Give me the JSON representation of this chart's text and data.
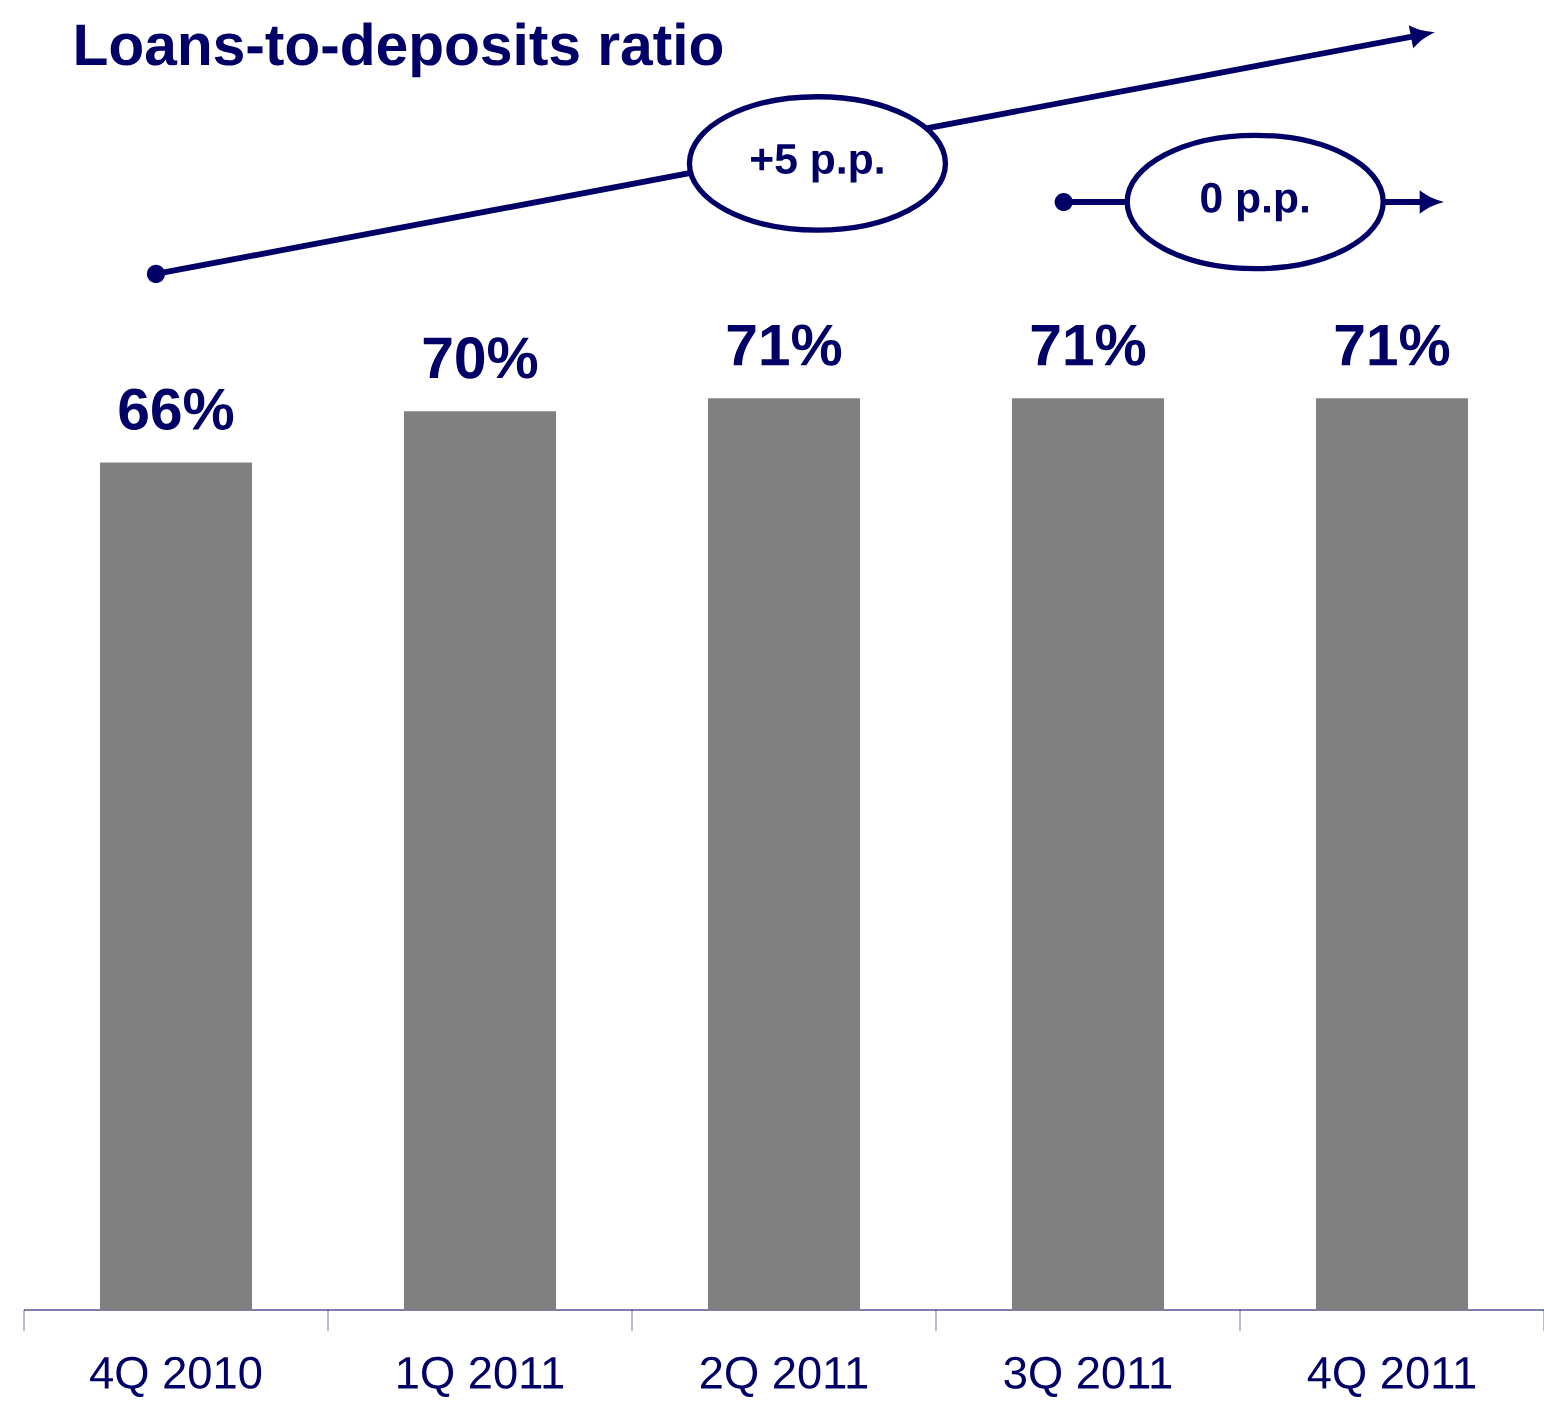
{
  "chart_data": {
    "type": "bar",
    "title": "Loans-to-deposits ratio",
    "categories": [
      "4Q 2010",
      "1Q 2011",
      "2Q 2011",
      "3Q 2011",
      "4Q 2011"
    ],
    "values": [
      66,
      70,
      71,
      71,
      71
    ],
    "value_labels": [
      "66%",
      "70%",
      "71%",
      "71%",
      "71%"
    ],
    "color": "#808080",
    "annotations": [
      "+5 p.p.",
      "0 p.p."
    ]
  }
}
